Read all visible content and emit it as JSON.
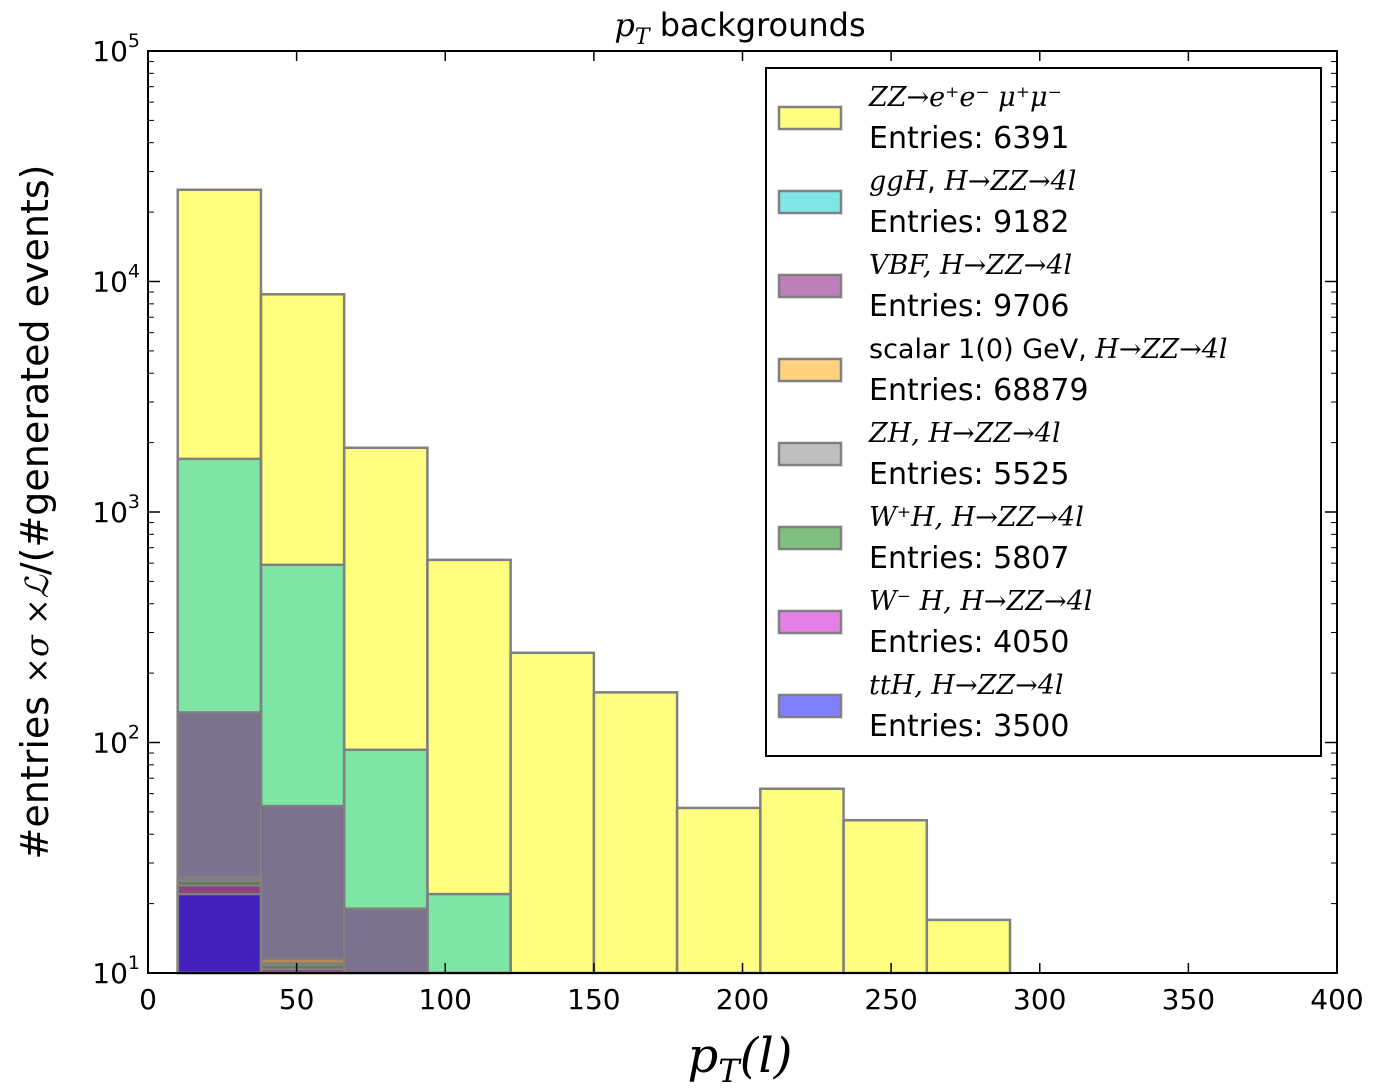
{
  "chart_data": {
    "type": "histogram",
    "title_math": "p",
    "title_sub": "T",
    "title_text": " backgrounds",
    "xlabel_math": "p",
    "xlabel_sub": "T",
    "xlabel_rest": "(l)",
    "ylabel_pre": "#entries ",
    "ylabel_math": "×σ ×ℒ",
    "ylabel_post": "/(#generated events)",
    "xlim": [
      0,
      400
    ],
    "ylim": [
      10,
      100000
    ],
    "yscale": "log",
    "x_ticks": [
      0,
      50,
      100,
      150,
      200,
      250,
      300,
      350,
      400
    ],
    "y_ticks": [
      {
        "base": "10",
        "exp": "1"
      },
      {
        "base": "10",
        "exp": "2"
      },
      {
        "base": "10",
        "exp": "3"
      },
      {
        "base": "10",
        "exp": "4"
      },
      {
        "base": "10",
        "exp": "5"
      }
    ],
    "bin_edges": [
      10,
      38,
      66,
      94,
      122,
      150,
      178,
      206,
      234,
      262,
      290
    ],
    "series": [
      {
        "name_math": "ZZ→e⁺e⁻ μ⁺μ⁻",
        "name_text": "",
        "entries": "Entries: 6391",
        "color": "#ffff00",
        "values": [
          25000,
          8800,
          1900,
          620,
          245,
          165,
          52,
          63,
          46,
          17
        ]
      },
      {
        "name_math": "ggH",
        "name_text": ", ",
        "name_math2": "H→ZZ→4l",
        "entries": "Entries: 9182",
        "color": "#00cccc",
        "values": [
          1700,
          590,
          93,
          22,
          0,
          0,
          0,
          0,
          0,
          0
        ]
      },
      {
        "name_text_pre": "VBF",
        "name_math": "VBF, H→ZZ→4l",
        "entries": "Entries: 9706",
        "color": "#7a0077",
        "values": [
          135,
          53,
          19,
          0,
          0,
          0,
          0,
          0,
          0,
          0
        ]
      },
      {
        "name_text_pre": "scalar 1(0) GeV,",
        "name_math": "H→ZZ→4l",
        "entries": "Entries: 68879",
        "color": "#ffa500",
        "values": [
          26,
          11.5,
          0,
          0,
          0,
          0,
          0,
          0,
          0,
          0
        ]
      },
      {
        "name_math": "ZH, H→ZZ→4l",
        "entries": "Entries: 5525",
        "color": "#808080",
        "values": [
          25.5,
          11,
          0,
          0,
          0,
          0,
          0,
          0,
          0,
          0
        ]
      },
      {
        "name_math": "W⁺H, H→ZZ→4l",
        "entries": "Entries: 5807",
        "color": "#008000",
        "values": [
          25,
          10.8,
          0,
          0,
          0,
          0,
          0,
          0,
          0,
          0
        ]
      },
      {
        "name_math": "W⁻ H, H→ZZ→4l",
        "entries": "Entries: 4050",
        "color": "#cc00cc",
        "values": [
          24,
          10.4,
          0,
          0,
          0,
          0,
          0,
          0,
          0,
          0
        ]
      },
      {
        "name_math": "ttH, H→ZZ→4l",
        "entries": "Entries: 3500",
        "color": "#0000ff",
        "values": [
          22,
          0,
          0,
          0,
          0,
          0,
          0,
          0,
          0,
          0
        ]
      }
    ],
    "legend_placement": "top-right"
  }
}
